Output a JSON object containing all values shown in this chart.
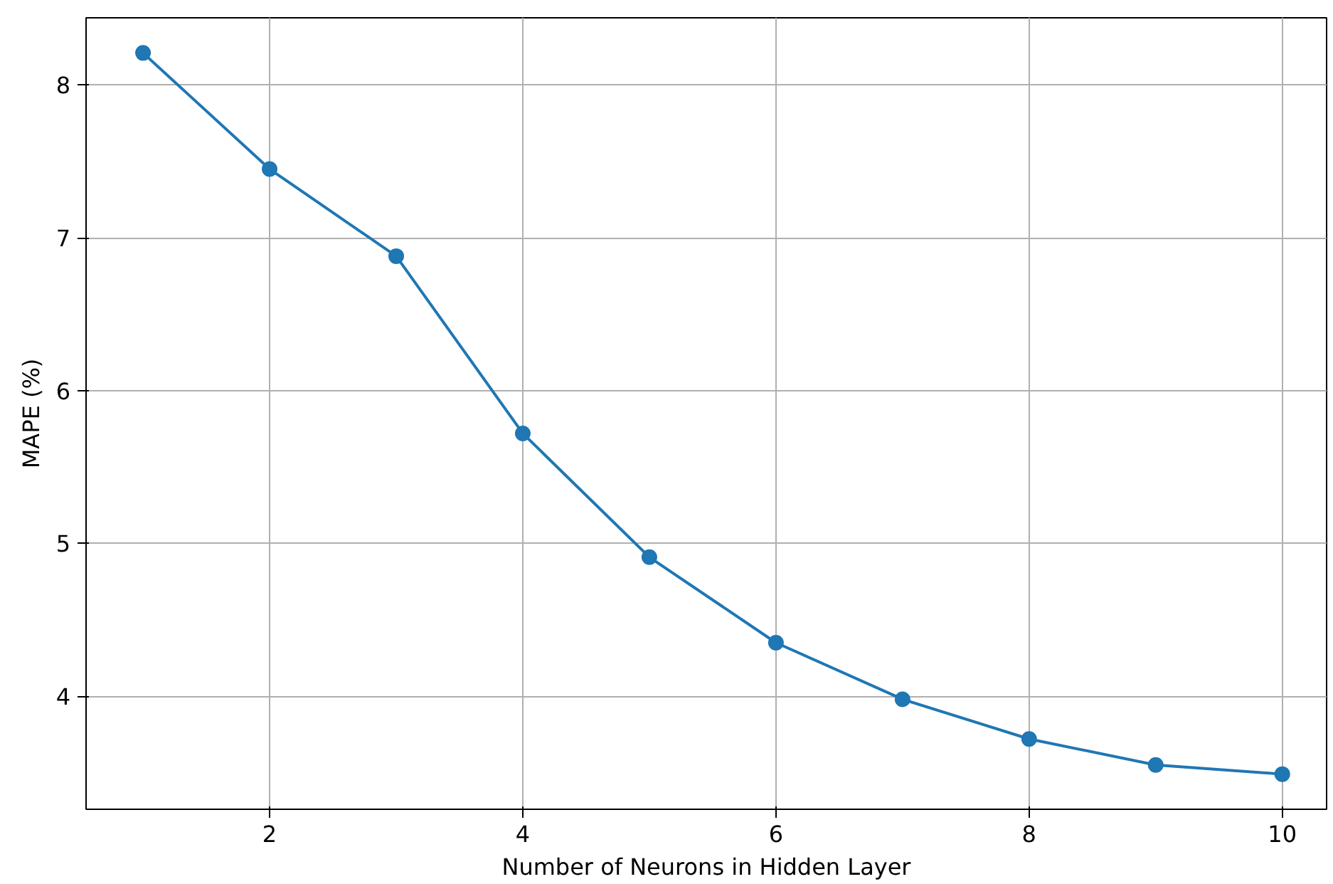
{
  "chart_data": {
    "type": "line",
    "xlabel": "Number of Neurons in Hidden Layer",
    "ylabel": "MAPE (%)",
    "x": [
      1,
      2,
      3,
      4,
      5,
      6,
      7,
      8,
      9,
      10
    ],
    "series": [
      {
        "color": "#1f77b4",
        "values": [
          8.21,
          7.45,
          6.88,
          5.72,
          4.91,
          4.35,
          3.98,
          3.72,
          3.55,
          3.49
        ]
      }
    ],
    "xlim": [
      0.55,
      10.35
    ],
    "ylim": [
      3.26,
      8.44
    ],
    "xticks": [
      2,
      4,
      6,
      8,
      10
    ],
    "yticks": [
      4,
      5,
      6,
      7,
      8
    ],
    "grid": true,
    "marker": "circle",
    "line_style": "solid"
  }
}
